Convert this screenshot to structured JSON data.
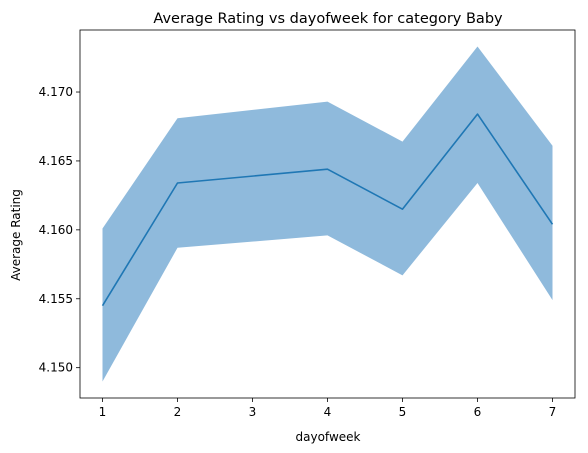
{
  "chart_data": {
    "type": "line",
    "title": "Average Rating vs dayofweek for category Baby",
    "xlabel": "dayofweek",
    "ylabel": "Average Rating",
    "x": [
      1,
      2,
      4,
      5,
      6,
      7
    ],
    "series": [
      {
        "values": [
          4.1545,
          4.1634,
          4.1644,
          4.1615,
          4.1684,
          4.1604
        ],
        "ci_lower": [
          4.149,
          4.1587,
          4.1596,
          4.1567,
          4.1634,
          4.1549
        ],
        "ci_upper": [
          4.1601,
          4.1681,
          4.1693,
          4.1664,
          4.1733,
          4.1661
        ],
        "color": "#1f77b4",
        "band_color": "#8fbadc"
      }
    ],
    "xticks": [
      1,
      2,
      3,
      4,
      5,
      6,
      7
    ],
    "yticks": [
      4.15,
      4.155,
      4.16,
      4.165,
      4.17
    ],
    "ytick_labels": [
      "4.150",
      "4.155",
      "4.160",
      "4.165",
      "4.170"
    ],
    "xlim": [
      0.7,
      7.3
    ],
    "ylim": [
      4.1478,
      4.1745
    ],
    "grid": false
  }
}
